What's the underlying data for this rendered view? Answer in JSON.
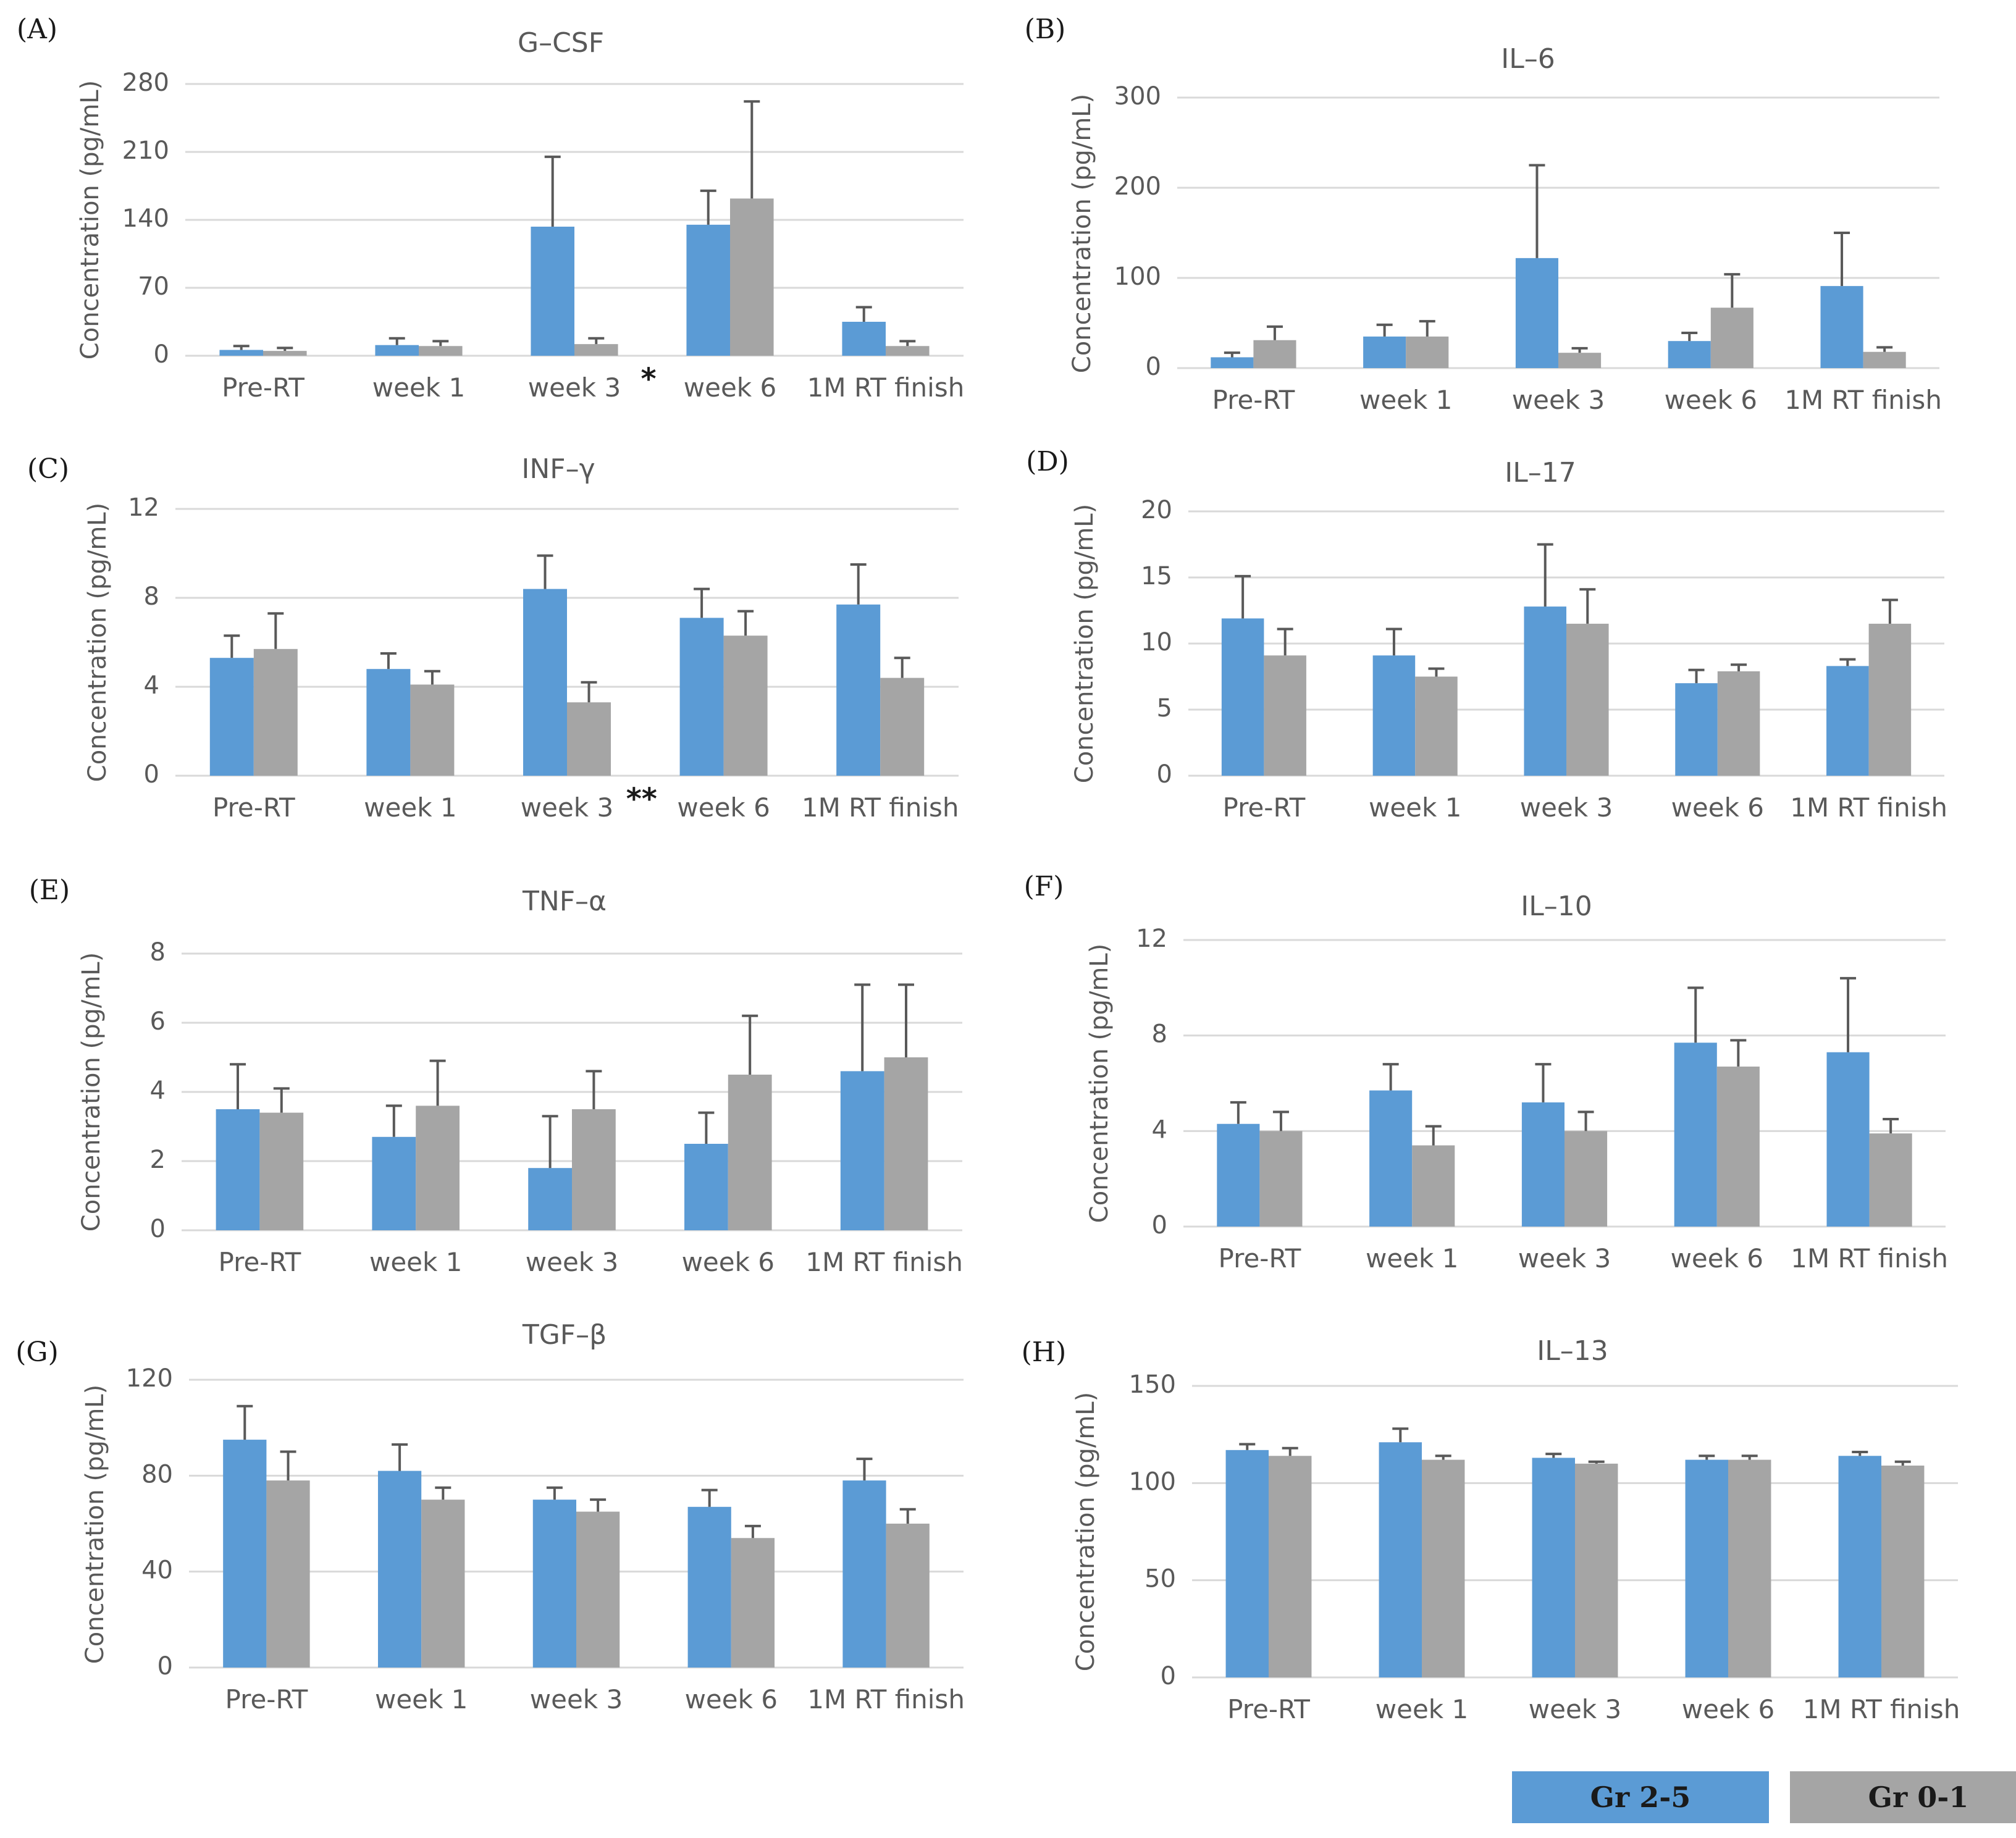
{
  "colors": {
    "series_a": "#5b9bd5",
    "series_b": "#a5a5a5",
    "grid": "#d9d9d9",
    "text": "#595959",
    "errorbar": "#595959"
  },
  "legend": {
    "items": [
      "Gr 2-5",
      "Gr 0-1"
    ]
  },
  "chart_data": [
    {
      "panel": "(A)",
      "type": "bar",
      "title": "G–CSF",
      "ylabel": "Concentration (pg/mL)",
      "categories": [
        "Pre-RT",
        "week 1",
        "week 3",
        "week 6",
        "1M RT finish"
      ],
      "yticks": [
        "0",
        "70",
        "140",
        "210",
        "280"
      ],
      "ylim": [
        0,
        280
      ],
      "grid": true,
      "series": [
        {
          "name": "Gr 2-5",
          "values": [
            6,
            11,
            133,
            135,
            35
          ],
          "errors": [
            4,
            7,
            72,
            35,
            15
          ]
        },
        {
          "name": "Gr 0-1",
          "values": [
            5,
            10,
            12,
            162,
            10
          ],
          "errors": [
            3,
            5,
            6,
            100,
            5
          ]
        }
      ],
      "annotations": [
        {
          "text": "*",
          "after_category": 2
        }
      ]
    },
    {
      "panel": "(B)",
      "type": "bar",
      "title": "IL–6",
      "ylabel": "Concentration (pg/mL)",
      "categories": [
        "Pre-RT",
        "week 1",
        "week 3",
        "week 6",
        "1M RT finish"
      ],
      "yticks": [
        "0",
        "100",
        "200",
        "300"
      ],
      "ylim": [
        0,
        300
      ],
      "grid": true,
      "series": [
        {
          "name": "Gr 2-5",
          "values": [
            12,
            35,
            122,
            30,
            91
          ],
          "errors": [
            5,
            13,
            103,
            9,
            59
          ]
        },
        {
          "name": "Gr 0-1",
          "values": [
            31,
            35,
            17,
            67,
            18
          ],
          "errors": [
            15,
            17,
            5,
            37,
            5
          ]
        }
      ],
      "annotations": []
    },
    {
      "panel": "(C)",
      "type": "bar",
      "title": "INF–γ",
      "ylabel": "Concentration (pg/mL)",
      "categories": [
        "Pre-RT",
        "week 1",
        "week 3",
        "week 6",
        "1M RT finish"
      ],
      "yticks": [
        "0",
        "4",
        "8",
        "12"
      ],
      "ylim": [
        0,
        12
      ],
      "grid": true,
      "series": [
        {
          "name": "Gr 2-5",
          "values": [
            5.3,
            4.8,
            8.4,
            7.1,
            7.7
          ],
          "errors": [
            1.0,
            0.7,
            1.5,
            1.3,
            1.8
          ]
        },
        {
          "name": "Gr 0-1",
          "values": [
            5.7,
            4.1,
            3.3,
            6.3,
            4.4
          ],
          "errors": [
            1.6,
            0.6,
            0.9,
            1.1,
            0.9
          ]
        }
      ],
      "annotations": [
        {
          "text": "**",
          "after_category": 2
        }
      ]
    },
    {
      "panel": "(D)",
      "type": "bar",
      "title": "IL–17",
      "ylabel": "Concentration (pg/mL)",
      "categories": [
        "Pre-RT",
        "week 1",
        "week 3",
        "week 6",
        "1M RT finish"
      ],
      "yticks": [
        "0",
        "5",
        "10",
        "15",
        "20"
      ],
      "ylim": [
        0,
        20
      ],
      "grid": true,
      "series": [
        {
          "name": "Gr 2-5",
          "values": [
            11.9,
            9.1,
            12.8,
            7.0,
            8.3
          ],
          "errors": [
            3.2,
            2.0,
            4.7,
            1.0,
            0.5
          ]
        },
        {
          "name": "Gr 0-1",
          "values": [
            9.1,
            7.5,
            11.5,
            7.9,
            11.5
          ],
          "errors": [
            2.0,
            0.6,
            2.6,
            0.5,
            1.8
          ]
        }
      ],
      "annotations": []
    },
    {
      "panel": "(E)",
      "type": "bar",
      "title": "TNF–α",
      "ylabel": "Concentration (pg/mL)",
      "categories": [
        "Pre-RT",
        "week 1",
        "week 3",
        "week 6",
        "1M RT finish"
      ],
      "yticks": [
        "0",
        "2",
        "4",
        "6",
        "8"
      ],
      "ylim": [
        0,
        8
      ],
      "grid": true,
      "series": [
        {
          "name": "Gr 2-5",
          "values": [
            3.5,
            2.7,
            1.8,
            2.5,
            4.6
          ],
          "errors": [
            1.3,
            0.9,
            1.5,
            0.9,
            2.5
          ]
        },
        {
          "name": "Gr 0-1",
          "values": [
            3.4,
            3.6,
            3.5,
            4.5,
            5.0
          ],
          "errors": [
            0.7,
            1.3,
            1.1,
            1.7,
            2.1
          ]
        }
      ],
      "annotations": []
    },
    {
      "panel": "(F)",
      "type": "bar",
      "title": "IL–10",
      "ylabel": "Concentration (pg/mL)",
      "categories": [
        "Pre-RT",
        "week 1",
        "week 3",
        "week 6",
        "1M RT finish"
      ],
      "yticks": [
        "0",
        "4",
        "8",
        "12"
      ],
      "ylim": [
        0,
        12
      ],
      "grid": true,
      "series": [
        {
          "name": "Gr 2-5",
          "values": [
            4.3,
            5.7,
            5.2,
            7.7,
            7.3
          ],
          "errors": [
            0.9,
            1.1,
            1.6,
            2.3,
            3.1
          ]
        },
        {
          "name": "Gr 0-1",
          "values": [
            4.0,
            3.4,
            4.0,
            6.7,
            3.9
          ],
          "errors": [
            0.8,
            0.8,
            0.8,
            1.1,
            0.6
          ]
        }
      ],
      "annotations": []
    },
    {
      "panel": "(G)",
      "type": "bar",
      "title": "TGF–β",
      "ylabel": "Concentration (pg/mL)",
      "categories": [
        "Pre-RT",
        "week 1",
        "week 3",
        "week 6",
        "1M RT finish"
      ],
      "yticks": [
        "0",
        "40",
        "80",
        "120"
      ],
      "ylim": [
        0,
        120
      ],
      "grid": true,
      "series": [
        {
          "name": "Gr 2-5",
          "values": [
            95,
            82,
            70,
            67,
            78
          ],
          "errors": [
            14,
            11,
            5,
            7,
            9
          ]
        },
        {
          "name": "Gr 0-1",
          "values": [
            78,
            70,
            65,
            54,
            60
          ],
          "errors": [
            12,
            5,
            5,
            5,
            6
          ]
        }
      ],
      "annotations": []
    },
    {
      "panel": "(H)",
      "type": "bar",
      "title": "IL–13",
      "ylabel": "Concentration (pg/mL)",
      "categories": [
        "Pre-RT",
        "week 1",
        "week 3",
        "week 6",
        "1M RT finish"
      ],
      "yticks": [
        "0",
        "50",
        "100",
        "150"
      ],
      "ylim": [
        0,
        150
      ],
      "grid": true,
      "series": [
        {
          "name": "Gr 2-5",
          "values": [
            117,
            121,
            113,
            112,
            114
          ],
          "errors": [
            3,
            7,
            2,
            2,
            2
          ]
        },
        {
          "name": "Gr 0-1",
          "values": [
            114,
            112,
            110,
            112,
            109
          ],
          "errors": [
            4,
            2,
            1,
            2,
            2
          ]
        }
      ],
      "annotations": []
    }
  ]
}
